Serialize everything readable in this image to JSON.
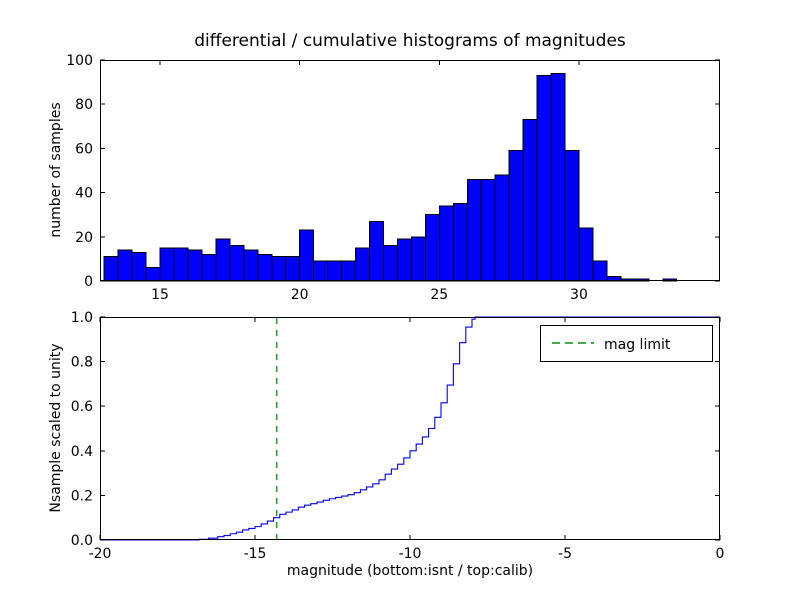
{
  "figure": {
    "title": "differential / cumulative histograms of magnitudes",
    "background": "#ffffff"
  },
  "chart_data": [
    {
      "type": "bar",
      "name": "differential-histogram",
      "ylabel": "number of samples",
      "bar_color": "#0000ff",
      "bar_edge_color": "#000000",
      "bin_start": 13.0,
      "bin_width": 0.5,
      "values": [
        11,
        14,
        13,
        6,
        15,
        15,
        14,
        12,
        19,
        16,
        14,
        12,
        11,
        11,
        23,
        9,
        9,
        9,
        15,
        27,
        16,
        19,
        20,
        30,
        34,
        35,
        46,
        46,
        48,
        59,
        73,
        93,
        94,
        59,
        24,
        9,
        2,
        1,
        1,
        0,
        1
      ],
      "xlim": [
        12.85,
        35.05
      ],
      "ylim": [
        0,
        100
      ],
      "xticks": [
        15,
        20,
        25,
        30
      ],
      "xtick_labels": [
        "15",
        "20",
        "25",
        "30"
      ],
      "yticks": [
        0,
        20,
        40,
        60,
        80,
        100
      ],
      "ytick_labels": [
        "0",
        "20",
        "40",
        "60",
        "80",
        "100"
      ],
      "grid": false
    },
    {
      "type": "line",
      "name": "cumulative-histogram",
      "step": true,
      "ylabel": "Nsample scaled to unity",
      "xlabel": "magnitude (bottom:isnt / top:calib)",
      "line_color": "#0000ff",
      "points": [
        [
          -20.0,
          0.0
        ],
        [
          -16.8,
          0.0
        ],
        [
          -16.8,
          0.003
        ],
        [
          -16.5,
          0.008
        ],
        [
          -16.2,
          0.015
        ],
        [
          -16.0,
          0.02
        ],
        [
          -15.8,
          0.028
        ],
        [
          -15.6,
          0.035
        ],
        [
          -15.4,
          0.045
        ],
        [
          -15.2,
          0.052
        ],
        [
          -15.0,
          0.06
        ],
        [
          -14.8,
          0.072
        ],
        [
          -14.6,
          0.085
        ],
        [
          -14.4,
          0.1
        ],
        [
          -14.2,
          0.115
        ],
        [
          -14.0,
          0.125
        ],
        [
          -13.8,
          0.135
        ],
        [
          -13.6,
          0.147
        ],
        [
          -13.4,
          0.156
        ],
        [
          -13.2,
          0.163
        ],
        [
          -13.0,
          0.17
        ],
        [
          -12.8,
          0.178
        ],
        [
          -12.6,
          0.185
        ],
        [
          -12.4,
          0.191
        ],
        [
          -12.2,
          0.197
        ],
        [
          -12.0,
          0.203
        ],
        [
          -11.8,
          0.212
        ],
        [
          -11.6,
          0.225
        ],
        [
          -11.4,
          0.238
        ],
        [
          -11.2,
          0.252
        ],
        [
          -11.0,
          0.27
        ],
        [
          -10.8,
          0.295
        ],
        [
          -10.6,
          0.318
        ],
        [
          -10.4,
          0.34
        ],
        [
          -10.2,
          0.368
        ],
        [
          -10.0,
          0.4
        ],
        [
          -9.8,
          0.43
        ],
        [
          -9.6,
          0.462
        ],
        [
          -9.4,
          0.5
        ],
        [
          -9.2,
          0.55
        ],
        [
          -9.0,
          0.615
        ],
        [
          -8.8,
          0.695
        ],
        [
          -8.6,
          0.79
        ],
        [
          -8.4,
          0.885
        ],
        [
          -8.2,
          0.955
        ],
        [
          -8.0,
          0.99
        ],
        [
          -7.9,
          1.0
        ],
        [
          0.0,
          1.0
        ]
      ],
      "xlim": [
        -20,
        0
      ],
      "ylim": [
        0,
        1
      ],
      "xticks": [
        -20,
        -15,
        -10,
        -5,
        0
      ],
      "xtick_labels": [
        "-20",
        "-15",
        "-10",
        "-5",
        "0"
      ],
      "yticks": [
        0,
        0.2,
        0.4,
        0.6,
        0.8,
        1.0
      ],
      "ytick_labels": [
        "0.0",
        "0.2",
        "0.4",
        "0.6",
        "0.8",
        "1.0"
      ],
      "vline": {
        "x": -14.3,
        "color": "#2ca02c",
        "style": "dashed",
        "label": "mag limit"
      },
      "legend": {
        "label": "mag limit",
        "position": "upper right",
        "line_color": "#2ca02c"
      },
      "grid": false
    }
  ]
}
